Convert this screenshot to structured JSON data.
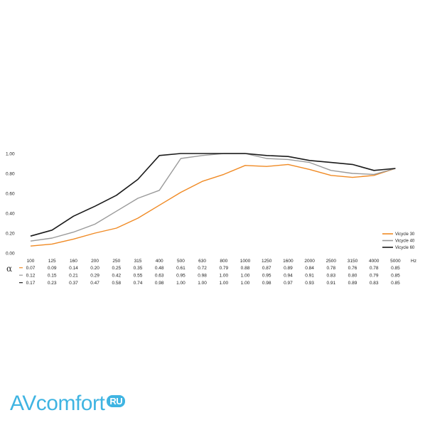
{
  "chart_data": {
    "type": "line",
    "title": "",
    "xlabel": "",
    "ylabel": "",
    "x_unit": "Hz",
    "alpha_symbol": "α",
    "categories": [
      "100",
      "125",
      "160",
      "200",
      "250",
      "315",
      "400",
      "500",
      "630",
      "800",
      "1000",
      "1250",
      "1600",
      "2000",
      "2500",
      "3150",
      "4000",
      "5000"
    ],
    "ylim": [
      0,
      1.0
    ],
    "yticks": [
      "0.00",
      "0.20",
      "0.40",
      "0.60",
      "0.80",
      "1.00"
    ],
    "grid": false,
    "legend_position": "right",
    "series": [
      {
        "name": "Vicycle 30",
        "color": "#f08a24",
        "values": [
          0.07,
          0.09,
          0.14,
          0.2,
          0.25,
          0.35,
          0.48,
          0.61,
          0.72,
          0.79,
          0.88,
          0.87,
          0.89,
          0.84,
          0.78,
          0.76,
          0.78,
          0.85
        ],
        "labels": [
          "0.07",
          "0.09",
          "0.14",
          "0.20",
          "0.25",
          "0.35",
          "0.48",
          "0.61",
          "0.72",
          "0.79",
          "0.88",
          "0.87",
          "0.89",
          "0.84",
          "0.78",
          "0.76",
          "0.78",
          "0.85"
        ]
      },
      {
        "name": "Vicycle 40",
        "color": "#9a9a9a",
        "values": [
          0.12,
          0.15,
          0.21,
          0.29,
          0.42,
          0.55,
          0.63,
          0.95,
          0.98,
          1.0,
          1.0,
          0.95,
          0.94,
          0.91,
          0.83,
          0.8,
          0.79,
          0.85
        ],
        "labels": [
          "0.12",
          "0.15",
          "0.21",
          "0.29",
          "0.42",
          "0.55",
          "0.63",
          "0.95",
          "0.98",
          "1.00",
          "1.00",
          "0.95",
          "0.94",
          "0.91",
          "0.83",
          "0.80",
          "0.79",
          "0.85"
        ]
      },
      {
        "name": "Vicycle 60",
        "color": "#1a1a1a",
        "values": [
          0.17,
          0.23,
          0.37,
          0.47,
          0.58,
          0.74,
          0.98,
          1.0,
          1.0,
          1.0,
          1.0,
          0.98,
          0.97,
          0.93,
          0.91,
          0.89,
          0.83,
          0.85
        ],
        "labels": [
          "0.17",
          "0.23",
          "0.37",
          "0.47",
          "0.58",
          "0.74",
          "0.98",
          "1.00",
          "1.00",
          "1.00",
          "1.00",
          "0.98",
          "0.97",
          "0.93",
          "0.91",
          "0.89",
          "0.83",
          "0.85"
        ]
      }
    ]
  },
  "logo": {
    "part1": "AV",
    "part2": "comfort",
    "badge": "RU"
  }
}
